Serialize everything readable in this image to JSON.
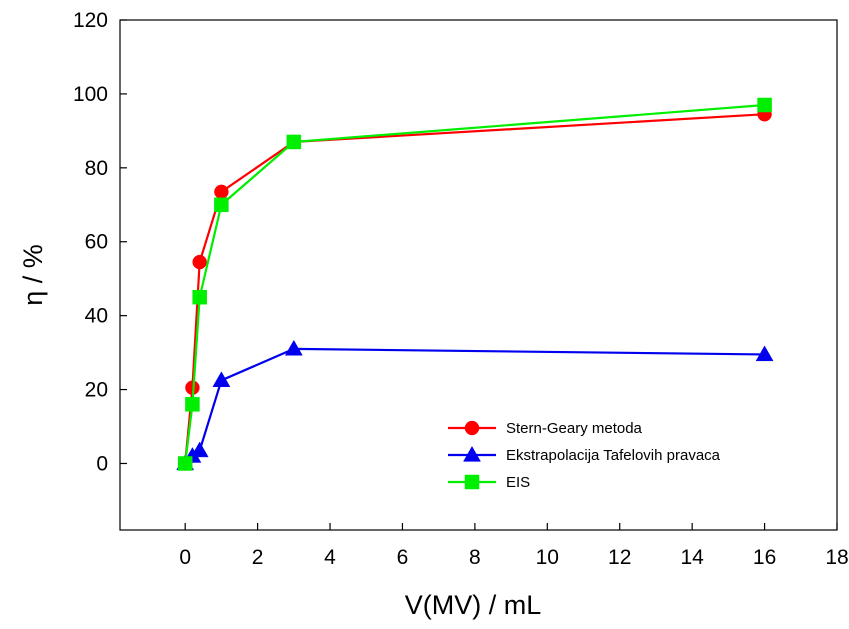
{
  "chart_data": {
    "type": "line",
    "xlabel": "V(MV) / mL",
    "ylabel": "η / %",
    "xlim": [
      -1.8,
      18
    ],
    "ylim": [
      -18,
      120
    ],
    "xticks": [
      0,
      2,
      4,
      6,
      8,
      10,
      12,
      14,
      16,
      18
    ],
    "yticks": [
      0,
      20,
      40,
      60,
      80,
      100,
      120
    ],
    "grid": false,
    "legend_position": "bottom-right",
    "series": [
      {
        "name": "Stern-Geary metoda",
        "color": "#ff0000",
        "marker": "circle",
        "x": [
          0,
          0.2,
          0.4,
          1,
          3,
          16
        ],
        "y": [
          0,
          20.5,
          54.5,
          73.5,
          87,
          94.5
        ]
      },
      {
        "name": "Ekstrapolacija Tafelovih pravaca",
        "color": "#0000ee",
        "marker": "triangle",
        "x": [
          0,
          0.2,
          0.4,
          1,
          3,
          16
        ],
        "y": [
          0,
          2,
          3.5,
          22.5,
          31,
          29.5
        ]
      },
      {
        "name": "EIS",
        "color": "#00ee00",
        "marker": "square",
        "x": [
          0,
          0.2,
          0.4,
          1,
          3,
          16
        ],
        "y": [
          0,
          16,
          45,
          70,
          87,
          97
        ]
      }
    ]
  }
}
